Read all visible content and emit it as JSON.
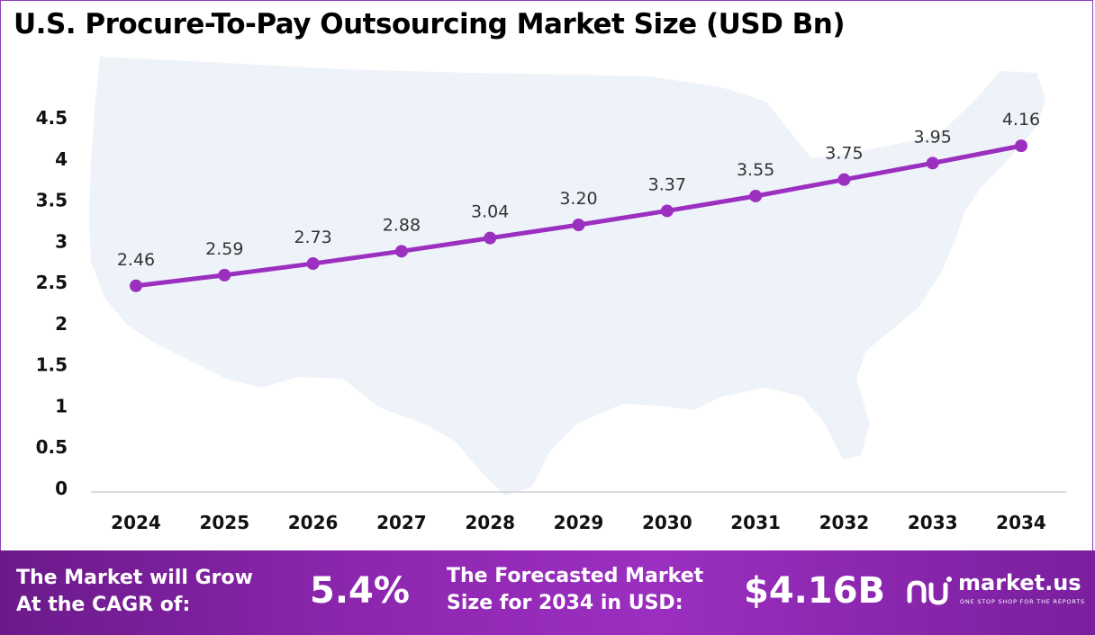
{
  "title": "U.S. Procure-To-Pay Outsourcing Market Size (USD Bn)",
  "chart_data": {
    "type": "line",
    "title": "U.S. Procure-To-Pay Outsourcing Market Size (USD Bn)",
    "categories": [
      "2024",
      "2025",
      "2026",
      "2027",
      "2028",
      "2029",
      "2030",
      "2031",
      "2032",
      "2033",
      "2034"
    ],
    "values": [
      2.46,
      2.59,
      2.73,
      2.88,
      3.04,
      3.2,
      3.37,
      3.55,
      3.75,
      3.95,
      4.16
    ],
    "data_labels": [
      "2.46",
      "2.59",
      "2.73",
      "2.88",
      "3.04",
      "3.20",
      "3.37",
      "3.55",
      "3.75",
      "3.95",
      "4.16"
    ],
    "yticks": [
      "0",
      "0.5",
      "1",
      "1.5",
      "2",
      "2.5",
      "3",
      "3.5",
      "4",
      "4.5"
    ],
    "ylim": [
      0,
      4.5
    ],
    "xlabel": "",
    "ylabel": "",
    "grid": false,
    "line_color": "#9b2fc0",
    "background_shape": "us-map-silhouette"
  },
  "footer": {
    "cagr_label_line1": "The Market will Grow",
    "cagr_label_line2": "At the CAGR of:",
    "cagr_value": "5.4%",
    "forecast_label_line1": "The Forecasted Market",
    "forecast_label_line2": "Size for 2034 in USD:",
    "forecast_value": "$4.16B",
    "logo_name": "market.us",
    "logo_tagline": "ONE STOP SHOP FOR THE REPORTS",
    "logo_icon": "market-us-logo-icon"
  }
}
